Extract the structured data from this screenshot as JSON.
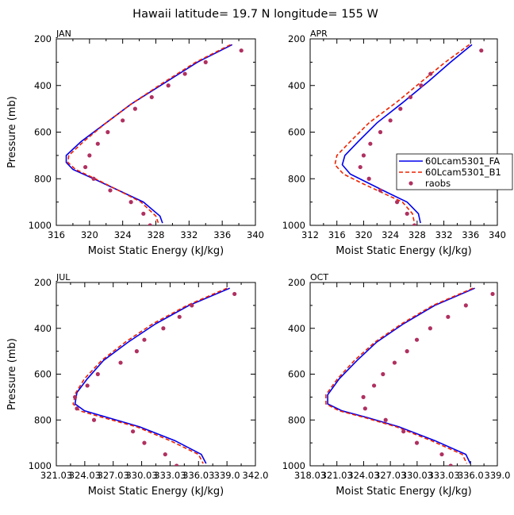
{
  "title": "Hawaii  latitude= 19.7 N longitude= 155 W",
  "colors": {
    "fa": "#0000ee",
    "b1": "#ee2200",
    "raobs": "#b03060",
    "axis": "#000000"
  },
  "chart_data": [
    {
      "type": "line",
      "panel_label": "JAN",
      "xlabel": "Moist Static Energy (kJ/kg)",
      "ylabel": "Pressure (mb)",
      "xlim": [
        316,
        340
      ],
      "ylim": [
        200,
        1000
      ],
      "y_inverted": true,
      "xticks": [
        "316",
        "320",
        "324",
        "328",
        "332",
        "336",
        "340"
      ],
      "yticks": [
        "200",
        "400",
        "600",
        "800",
        "1000"
      ],
      "series": [
        {
          "name": "60Lcam5301_FA",
          "style": "solid",
          "points": [
            [
              337.2,
              225
            ],
            [
              333,
              300
            ],
            [
              329,
              390
            ],
            [
              325,
              480
            ],
            [
              322,
              560
            ],
            [
              319,
              640
            ],
            [
              317.2,
              700
            ],
            [
              317.2,
              730
            ],
            [
              318,
              760
            ],
            [
              320.5,
              800
            ],
            [
              323.5,
              850
            ],
            [
              326.5,
              900
            ],
            [
              328.5,
              960
            ],
            [
              328.8,
              990
            ]
          ]
        },
        {
          "name": "60Lcam5301_B1",
          "style": "dashed",
          "points": [
            [
              337,
              225
            ],
            [
              332.8,
              300
            ],
            [
              328.8,
              390
            ],
            [
              325,
              480
            ],
            [
              322,
              560
            ],
            [
              319.3,
              640
            ],
            [
              317.5,
              700
            ],
            [
              317.4,
              730
            ],
            [
              318.3,
              760
            ],
            [
              320.7,
              800
            ],
            [
              323.5,
              850
            ],
            [
              326.2,
              900
            ],
            [
              328,
              960
            ],
            [
              328.3,
              990
            ]
          ]
        },
        {
          "name": "raobs",
          "style": "dots",
          "points": [
            [
              338.3,
              250
            ],
            [
              334,
              300
            ],
            [
              331.5,
              350
            ],
            [
              329.5,
              400
            ],
            [
              327.5,
              450
            ],
            [
              325.5,
              500
            ],
            [
              324,
              550
            ],
            [
              322.2,
              600
            ],
            [
              321,
              650
            ],
            [
              320,
              700
            ],
            [
              319.5,
              750
            ],
            [
              320.5,
              800
            ],
            [
              322.5,
              850
            ],
            [
              325,
              900
            ],
            [
              326.5,
              950
            ],
            [
              327.3,
              1000
            ]
          ]
        }
      ]
    },
    {
      "type": "line",
      "panel_label": "APR",
      "xlabel": "Moist Static Energy (kJ/kg)",
      "ylabel": "",
      "xlim": [
        312,
        340
      ],
      "ylim": [
        200,
        1000
      ],
      "y_inverted": true,
      "xticks": [
        "312",
        "316",
        "320",
        "324",
        "328",
        "332",
        "336",
        "340"
      ],
      "yticks": [
        "200",
        "400",
        "600",
        "800",
        "1000"
      ],
      "legend": {
        "placement": "right",
        "entries": [
          "60Lcam5301_FA",
          "60Lcam5301_B1",
          "raobs"
        ]
      },
      "series": [
        {
          "name": "60Lcam5301_FA",
          "style": "solid",
          "points": [
            [
              336.2,
              225
            ],
            [
              333,
              300
            ],
            [
              329.8,
              380
            ],
            [
              326,
              470
            ],
            [
              322,
              560
            ],
            [
              319.2,
              640
            ],
            [
              317.2,
              700
            ],
            [
              316.8,
              740
            ],
            [
              318,
              780
            ],
            [
              320.8,
              820
            ],
            [
              323.6,
              860
            ],
            [
              326.5,
              900
            ],
            [
              328.2,
              950
            ],
            [
              328.5,
              990
            ]
          ]
        },
        {
          "name": "60Lcam5301_B1",
          "style": "dashed",
          "points": [
            [
              335.8,
              225
            ],
            [
              332.2,
              300
            ],
            [
              328.8,
              380
            ],
            [
              325,
              470
            ],
            [
              320.8,
              560
            ],
            [
              318,
              640
            ],
            [
              316,
              700
            ],
            [
              315.7,
              740
            ],
            [
              317,
              780
            ],
            [
              319.8,
              820
            ],
            [
              322.8,
              860
            ],
            [
              325.8,
              900
            ],
            [
              327.3,
              950
            ],
            [
              327.6,
              990
            ]
          ]
        },
        {
          "name": "raobs",
          "style": "dots",
          "points": [
            [
              337.6,
              250
            ],
            [
              330,
              350
            ],
            [
              328.6,
              400
            ],
            [
              327,
              450
            ],
            [
              325.5,
              500
            ],
            [
              324,
              550
            ],
            [
              322.5,
              600
            ],
            [
              321,
              650
            ],
            [
              320,
              700
            ],
            [
              319.5,
              750
            ],
            [
              320.8,
              800
            ],
            [
              322.5,
              850
            ],
            [
              325,
              900
            ],
            [
              326.5,
              950
            ],
            [
              327.6,
              1000
            ]
          ]
        }
      ]
    },
    {
      "type": "line",
      "panel_label": "JUL",
      "xlabel": "Moist Static Energy (kJ/kg)",
      "ylabel": "Pressure (mb)",
      "xlim": [
        321.03,
        342
      ],
      "ylim": [
        200,
        1000
      ],
      "y_inverted": true,
      "xticks": [
        "321.03",
        "324.03",
        "327.03",
        "330.03",
        "333.03",
        "336.03",
        "339.0",
        "342.0"
      ],
      "yticks": [
        "200",
        "400",
        "600",
        "800",
        "1000"
      ],
      "series": [
        {
          "name": "60Lcam5301_FA",
          "style": "solid",
          "points": [
            [
              339.3,
              225
            ],
            [
              335,
              300
            ],
            [
              331.5,
              380
            ],
            [
              328.6,
              460
            ],
            [
              326,
              540
            ],
            [
              324.3,
              620
            ],
            [
              323.2,
              680
            ],
            [
              323,
              730
            ],
            [
              324,
              760
            ],
            [
              326.5,
              790
            ],
            [
              329.8,
              830
            ],
            [
              333.5,
              890
            ],
            [
              336.3,
              950
            ],
            [
              336.8,
              990
            ]
          ]
        },
        {
          "name": "60Lcam5301_B1",
          "style": "dashed",
          "points": [
            [
              339,
              225
            ],
            [
              334.8,
              300
            ],
            [
              331.2,
              380
            ],
            [
              328.3,
              460
            ],
            [
              325.8,
              540
            ],
            [
              324,
              620
            ],
            [
              323.1,
              680
            ],
            [
              322.8,
              730
            ],
            [
              323.5,
              760
            ],
            [
              326,
              790
            ],
            [
              329.5,
              830
            ],
            [
              333,
              890
            ],
            [
              336,
              950
            ],
            [
              336.5,
              990
            ]
          ]
        },
        {
          "name": "raobs",
          "style": "dots",
          "points": [
            [
              339.8,
              250
            ],
            [
              335.3,
              300
            ],
            [
              334,
              350
            ],
            [
              332.3,
              400
            ],
            [
              330.3,
              450
            ],
            [
              329.5,
              500
            ],
            [
              327.8,
              550
            ],
            [
              325.4,
              600
            ],
            [
              324.3,
              650
            ],
            [
              323,
              700
            ],
            [
              323.2,
              750
            ],
            [
              325,
              800
            ],
            [
              329.1,
              850
            ],
            [
              330.3,
              900
            ],
            [
              332.5,
              950
            ],
            [
              333.7,
              1000
            ]
          ]
        }
      ]
    },
    {
      "type": "line",
      "panel_label": "OCT",
      "xlabel": "Moist Static Energy (kJ/kg)",
      "ylabel": "",
      "xlim": [
        318.03,
        339.03
      ],
      "ylim": [
        200,
        1000
      ],
      "y_inverted": true,
      "xticks": [
        "318.03",
        "321.03",
        "324.03",
        "327.03",
        "330.03",
        "333.03",
        "336.0",
        "339.0"
      ],
      "yticks": [
        "200",
        "400",
        "600",
        "800",
        "1000"
      ],
      "series": [
        {
          "name": "60Lcam5301_FA",
          "style": "solid",
          "points": [
            [
              336.5,
              225
            ],
            [
              332,
              300
            ],
            [
              328.5,
              380
            ],
            [
              325.5,
              460
            ],
            [
              323.3,
              540
            ],
            [
              321.3,
              620
            ],
            [
              320,
              690
            ],
            [
              320,
              730
            ],
            [
              321.6,
              760
            ],
            [
              324.5,
              790
            ],
            [
              328,
              830
            ],
            [
              332,
              890
            ],
            [
              335.5,
              950
            ],
            [
              336,
              990
            ]
          ]
        },
        {
          "name": "60Lcam5301_B1",
          "style": "dashed",
          "points": [
            [
              336.3,
              225
            ],
            [
              331.8,
              300
            ],
            [
              328.3,
              380
            ],
            [
              325.3,
              460
            ],
            [
              323,
              540
            ],
            [
              321.1,
              620
            ],
            [
              319.8,
              690
            ],
            [
              319.8,
              730
            ],
            [
              321.3,
              760
            ],
            [
              324.2,
              790
            ],
            [
              327.7,
              830
            ],
            [
              331.6,
              890
            ],
            [
              335.1,
              950
            ],
            [
              335.6,
              990
            ]
          ]
        },
        {
          "name": "raobs",
          "style": "dots",
          "points": [
            [
              338.5,
              250
            ],
            [
              335.5,
              300
            ],
            [
              333.5,
              350
            ],
            [
              331.5,
              400
            ],
            [
              330,
              450
            ],
            [
              328.9,
              500
            ],
            [
              327.5,
              550
            ],
            [
              326.2,
              600
            ],
            [
              325.2,
              650
            ],
            [
              324,
              700
            ],
            [
              324.2,
              750
            ],
            [
              326.5,
              800
            ],
            [
              328.5,
              850
            ],
            [
              330,
              900
            ],
            [
              332.8,
              950
            ],
            [
              333.8,
              1000
            ]
          ]
        }
      ]
    }
  ]
}
